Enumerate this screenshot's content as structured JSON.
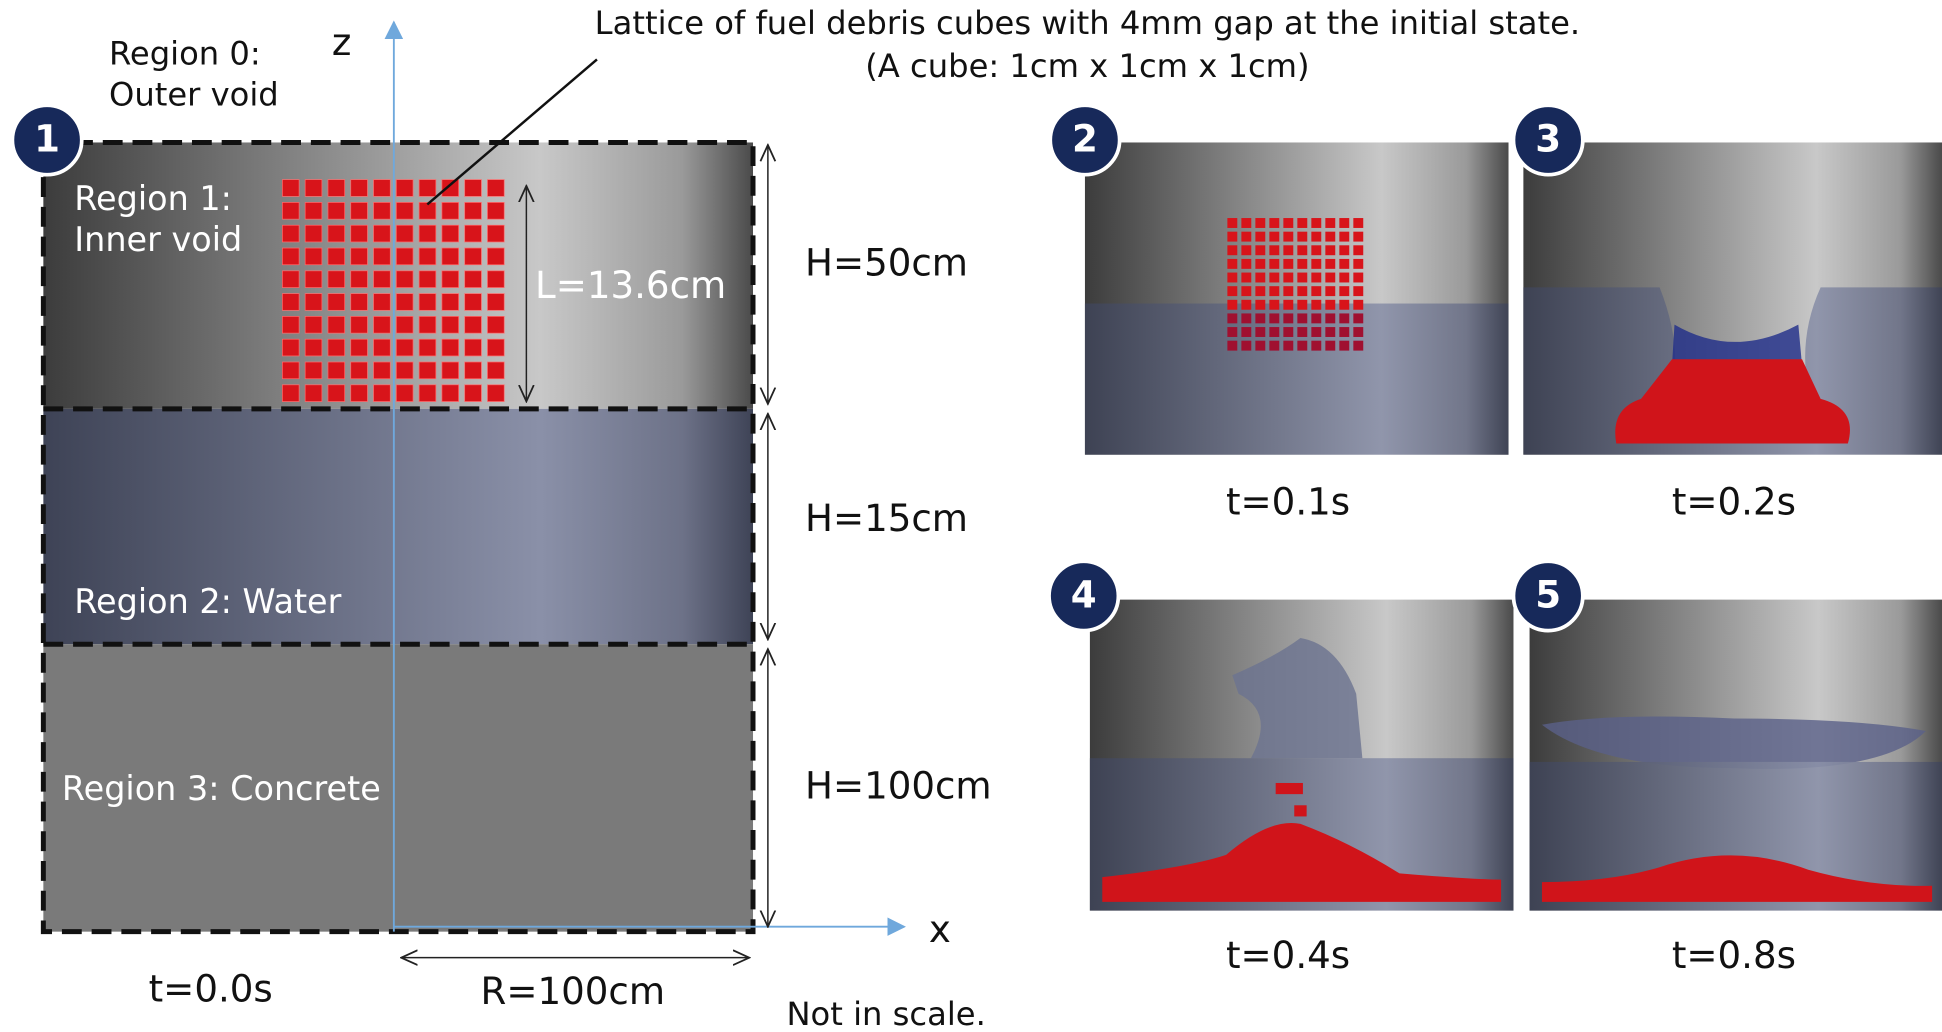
{
  "annotation": {
    "line1": "Lattice of fuel debris cubes with 4mm gap at the initial state.",
    "line2": "(A cube: 1cm x 1cm x 1cm)"
  },
  "axes": {
    "z": "z",
    "x": "x"
  },
  "regions": {
    "outer_void": [
      "Region 0:",
      "Outer void"
    ],
    "inner_void": [
      "Region 1:",
      "Inner void"
    ],
    "water": "Region 2: Water",
    "concrete": "Region 3: Concrete"
  },
  "dimensions": {
    "lattice": "L=13.6cm",
    "heights": [
      "H=50cm",
      "H=15cm",
      "H=100cm"
    ],
    "radius": "R=100cm"
  },
  "note": "Not in scale.",
  "panels": [
    {
      "badge": "1",
      "time": "t=0.0s"
    },
    {
      "badge": "2",
      "time": "t=0.1s"
    },
    {
      "badge": "3",
      "time": "t=0.2s"
    },
    {
      "badge": "4",
      "time": "t=0.4s"
    },
    {
      "badge": "5",
      "time": "t=0.8s"
    }
  ]
}
